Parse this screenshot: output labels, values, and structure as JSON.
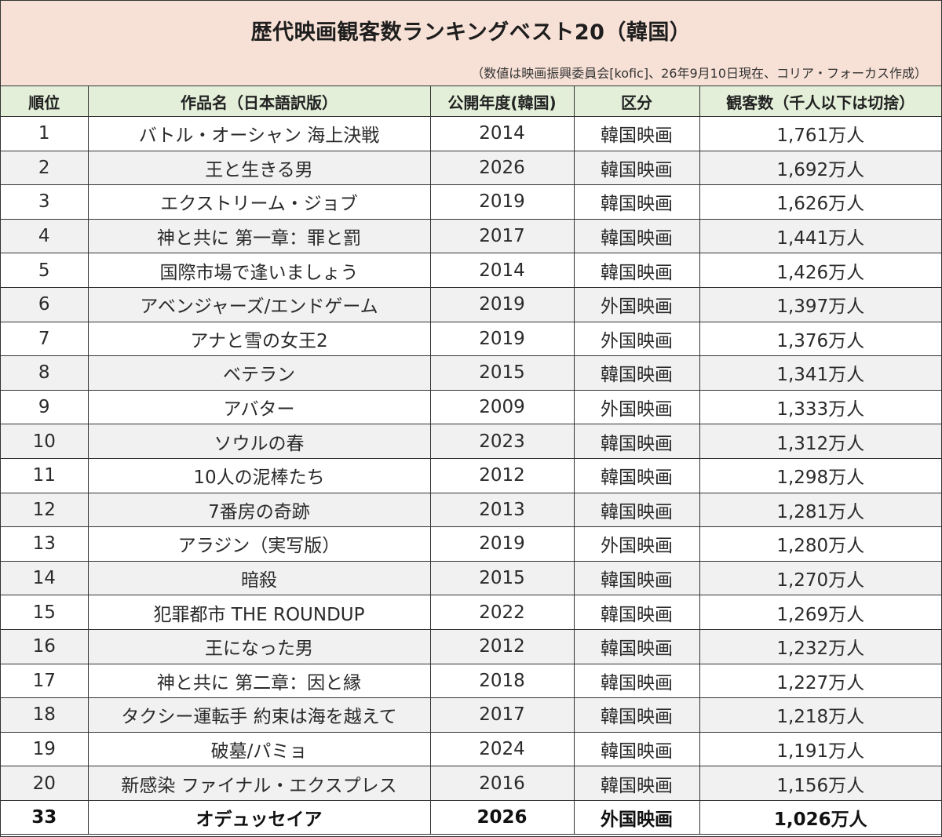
{
  "title": "歴代映画観客数ランキングベスト20（韓国）",
  "source": "（数値は映画振興委員会[kofic]、26年9月10日現在、コリア・フォーカス作成）",
  "columns": [
    "順位",
    "作品名（日本語訳版）",
    "公開年度(韓国)",
    "区分",
    "観客数（千人以下は切捨）"
  ],
  "rows": [
    {
      "rank": "1",
      "title": "バトル・オーシャン 海上決戦",
      "year": "2014",
      "category": "韓国映画",
      "audience": "1,761万人"
    },
    {
      "rank": "2",
      "title": "王と生きる男",
      "year": "2026",
      "category": "韓国映画",
      "audience": "1,692万人"
    },
    {
      "rank": "3",
      "title": "エクストリーム・ジョブ",
      "year": "2019",
      "category": "韓国映画",
      "audience": "1,626万人"
    },
    {
      "rank": "4",
      "title": "神と共に 第一章：罪と罰",
      "year": "2017",
      "category": "韓国映画",
      "audience": "1,441万人"
    },
    {
      "rank": "5",
      "title": "国際市場で逢いましょう",
      "year": "2014",
      "category": "韓国映画",
      "audience": "1,426万人"
    },
    {
      "rank": "6",
      "title": "アベンジャーズ/エンドゲーム",
      "year": "2019",
      "category": "外国映画",
      "audience": "1,397万人"
    },
    {
      "rank": "7",
      "title": "アナと雪の女王2",
      "year": "2019",
      "category": "外国映画",
      "audience": "1,376万人"
    },
    {
      "rank": "8",
      "title": "ベテラン",
      "year": "2015",
      "category": "韓国映画",
      "audience": "1,341万人"
    },
    {
      "rank": "9",
      "title": "アバター",
      "year": "2009",
      "category": "外国映画",
      "audience": "1,333万人"
    },
    {
      "rank": "10",
      "title": "ソウルの春",
      "year": "2023",
      "category": "韓国映画",
      "audience": "1,312万人"
    },
    {
      "rank": "11",
      "title": "10人の泥棒たち",
      "year": "2012",
      "category": "韓国映画",
      "audience": "1,298万人"
    },
    {
      "rank": "12",
      "title": "7番房の奇跡",
      "year": "2013",
      "category": "韓国映画",
      "audience": "1,281万人"
    },
    {
      "rank": "13",
      "title": "アラジン（実写版）",
      "year": "2019",
      "category": "外国映画",
      "audience": "1,280万人"
    },
    {
      "rank": "14",
      "title": "暗殺",
      "year": "2015",
      "category": "韓国映画",
      "audience": "1,270万人"
    },
    {
      "rank": "15",
      "title": "犯罪都市 THE ROUNDUP",
      "year": "2022",
      "category": "韓国映画",
      "audience": "1,269万人"
    },
    {
      "rank": "16",
      "title": "王になった男",
      "year": "2012",
      "category": "韓国映画",
      "audience": "1,232万人"
    },
    {
      "rank": "17",
      "title": "神と共に 第二章：因と縁",
      "year": "2018",
      "category": "韓国映画",
      "audience": "1,227万人"
    },
    {
      "rank": "18",
      "title": "タクシー運転手 約束は海を越えて",
      "year": "2017",
      "category": "韓国映画",
      "audience": "1,218万人"
    },
    {
      "rank": "19",
      "title": "破墓/パミョ",
      "year": "2024",
      "category": "韓国映画",
      "audience": "1,191万人"
    },
    {
      "rank": "20",
      "title": "新感染 ファイナル・エクスプレス",
      "year": "2016",
      "category": "韓国映画",
      "audience": "1,156万人"
    },
    {
      "rank": "33",
      "title": "オデュッセイア",
      "year": "2026",
      "category": "外国映画",
      "audience": "1,026万人",
      "bold": true
    }
  ],
  "colors": {
    "header_bg": "#f7e1d6",
    "column_header_bg": "#e3efd9",
    "alt_row_bg": "#f1f1f1",
    "border": "#333333"
  }
}
